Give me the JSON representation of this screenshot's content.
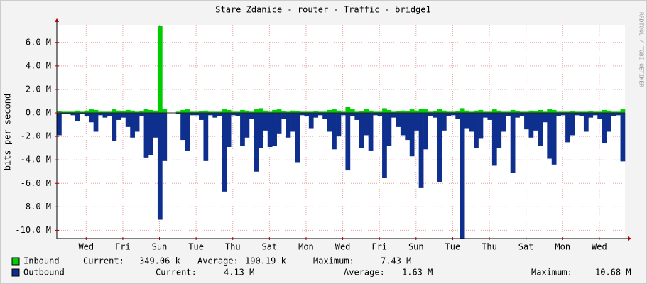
{
  "chart_data": {
    "type": "area",
    "title": "Stare Zdanice - router - Traffic - bridge1",
    "y_label": "bits per second",
    "watermark": "RRDTOOL / TOBI OETIKER",
    "xlim": [
      0,
      31
    ],
    "ylim": [
      -10.7,
      7.5
    ],
    "grid": true,
    "xticks": [
      {
        "value": 1.6,
        "label": "Wed"
      },
      {
        "value": 3.6,
        "label": "Fri"
      },
      {
        "value": 5.6,
        "label": "Sun"
      },
      {
        "value": 7.6,
        "label": "Tue"
      },
      {
        "value": 9.6,
        "label": "Thu"
      },
      {
        "value": 11.6,
        "label": "Sat"
      },
      {
        "value": 13.6,
        "label": "Mon"
      },
      {
        "value": 15.6,
        "label": "Wed"
      },
      {
        "value": 17.6,
        "label": "Fri"
      },
      {
        "value": 19.6,
        "label": "Sun"
      },
      {
        "value": 21.6,
        "label": "Tue"
      },
      {
        "value": 23.6,
        "label": "Thu"
      },
      {
        "value": 25.6,
        "label": "Sat"
      },
      {
        "value": 27.6,
        "label": "Mon"
      },
      {
        "value": 29.6,
        "label": "Wed"
      }
    ],
    "yticks": [
      {
        "value": 6,
        "label": "6.0 M"
      },
      {
        "value": 4,
        "label": "4.0 M"
      },
      {
        "value": 2,
        "label": "2.0 M"
      },
      {
        "value": 0,
        "label": "0.0 M"
      },
      {
        "value": -2,
        "label": "-2.0 M"
      },
      {
        "value": -4,
        "label": "-4.0 M"
      },
      {
        "value": -6,
        "label": "-6.0 M"
      },
      {
        "value": -8,
        "label": "-8.0 M"
      },
      {
        "value": -10,
        "label": "-10.0 M"
      }
    ],
    "x": [
      0,
      0.25,
      0.5,
      0.75,
      1,
      1.25,
      1.5,
      1.75,
      2,
      2.25,
      2.5,
      2.75,
      3,
      3.25,
      3.5,
      3.75,
      4,
      4.25,
      4.5,
      4.75,
      5,
      5.25,
      5.5,
      5.75,
      6,
      6.25,
      6.5,
      6.75,
      7,
      7.25,
      7.5,
      7.75,
      8,
      8.25,
      8.5,
      8.75,
      9,
      9.25,
      9.5,
      9.75,
      10,
      10.25,
      10.5,
      10.75,
      11,
      11.25,
      11.5,
      11.75,
      12,
      12.25,
      12.5,
      12.75,
      13,
      13.25,
      13.5,
      13.75,
      14,
      14.25,
      14.5,
      14.75,
      15,
      15.25,
      15.5,
      15.75,
      16,
      16.25,
      16.5,
      16.75,
      17,
      17.25,
      17.5,
      17.75,
      18,
      18.25,
      18.5,
      18.75,
      19,
      19.25,
      19.5,
      19.75,
      20,
      20.25,
      20.5,
      20.75,
      21,
      21.25,
      21.5,
      21.75,
      22,
      22.25,
      22.5,
      22.75,
      23,
      23.25,
      23.5,
      23.75,
      24,
      24.25,
      24.5,
      24.75,
      25,
      25.25,
      25.5,
      25.75,
      26,
      26.25,
      26.5,
      26.75,
      27,
      27.25,
      27.5,
      27.75,
      28,
      28.25,
      28.5,
      28.75,
      29,
      29.25,
      29.5,
      29.75,
      30,
      30.25,
      30.5,
      30.75
    ],
    "series": [
      {
        "name": "Inbound",
        "color": "#00cc00",
        "values": [
          0.15,
          0.1,
          0.1,
          0.1,
          0.2,
          0.1,
          0.2,
          0.3,
          0.25,
          0.1,
          0.1,
          0.1,
          0.3,
          0.2,
          0.15,
          0.25,
          0.2,
          0.1,
          0.15,
          0.3,
          0.25,
          0.2,
          7.43,
          0.3,
          null,
          null,
          0.1,
          0.25,
          0.3,
          0.1,
          0.1,
          0.15,
          0.2,
          0.1,
          0.1,
          0.1,
          0.3,
          0.25,
          0.1,
          0.1,
          0.25,
          0.2,
          0.1,
          0.3,
          0.4,
          0.2,
          0.1,
          0.25,
          0.3,
          0.15,
          0.1,
          0.2,
          0.15,
          0.1,
          0.1,
          0.1,
          0.15,
          0.1,
          0.1,
          0.25,
          0.3,
          0.2,
          0.1,
          0.5,
          0.3,
          0.1,
          0.15,
          0.3,
          0.2,
          0.1,
          0.1,
          0.4,
          0.25,
          0.1,
          0.15,
          0.2,
          0.15,
          0.3,
          0.2,
          0.35,
          0.3,
          0.1,
          0.15,
          0.3,
          0.2,
          0.1,
          0.1,
          0.15,
          0.4,
          0.2,
          0.1,
          0.2,
          0.25,
          0.1,
          0.1,
          0.3,
          0.2,
          0.1,
          0.1,
          0.25,
          0.15,
          0.1,
          0.1,
          0.2,
          0.15,
          0.25,
          0.1,
          0.3,
          0.25,
          0.1,
          0.1,
          0.1,
          0.15,
          0.1,
          0.1,
          0.1,
          0.15,
          0.1,
          0.1,
          0.25,
          0.2,
          0.1,
          0.1,
          0.3
        ],
        "stats": [
          {
            "label": "Current:",
            "value": "349.06 k"
          },
          {
            "label": "Average:",
            "value": "190.19 k"
          },
          {
            "label": "Maximum:",
            "value": "7.43 M"
          }
        ]
      },
      {
        "name": "Outbound",
        "color": "#0f2f8f",
        "values": [
          -1.9,
          -0.1,
          -0.1,
          -0.2,
          -0.7,
          -0.1,
          -0.3,
          -0.8,
          -1.6,
          -0.2,
          -0.4,
          -0.3,
          -2.4,
          -0.6,
          -0.4,
          -1.2,
          -2.1,
          -1.6,
          -0.3,
          -3.8,
          -3.6,
          -2.1,
          -9.1,
          -4.1,
          null,
          null,
          -0.1,
          -2.3,
          -3.2,
          -0.2,
          -0.2,
          -0.6,
          -4.1,
          -0.2,
          -0.4,
          -0.3,
          -6.7,
          -2.9,
          -0.2,
          -0.3,
          -2.8,
          -2.1,
          -0.5,
          -5.0,
          -3.0,
          -1.5,
          -2.9,
          -2.8,
          -1.8,
          -0.5,
          -2.1,
          -1.6,
          -4.2,
          -0.2,
          -0.3,
          -1.3,
          -0.4,
          -0.2,
          -0.5,
          -1.6,
          -3.1,
          -2.0,
          -0.2,
          -4.9,
          -0.3,
          -0.6,
          -3.0,
          -1.9,
          -3.2,
          -0.2,
          -0.3,
          -5.5,
          -2.8,
          -0.4,
          -1.2,
          -1.9,
          -2.3,
          -3.7,
          -1.5,
          -6.4,
          -3.1,
          -0.3,
          -0.4,
          -5.9,
          -1.5,
          -0.3,
          -0.2,
          -0.5,
          -10.68,
          -1.3,
          -1.6,
          -3.0,
          -2.2,
          -0.4,
          -0.6,
          -4.5,
          -3.0,
          -1.6,
          -0.3,
          -5.1,
          -0.4,
          -0.3,
          -1.4,
          -2.1,
          -1.5,
          -2.8,
          -0.8,
          -3.9,
          -4.4,
          -0.3,
          -0.2,
          -2.5,
          -1.9,
          -0.2,
          -0.3,
          -1.6,
          -0.4,
          -0.2,
          -0.5,
          -2.6,
          -1.6,
          -0.3,
          -0.2,
          -4.13
        ],
        "stats": [
          {
            "label": "Current:",
            "value": "4.13 M"
          },
          {
            "label": "Average:",
            "value": "1.63 M"
          },
          {
            "label": "Maximum:",
            "value": "10.68 M"
          }
        ]
      }
    ]
  }
}
